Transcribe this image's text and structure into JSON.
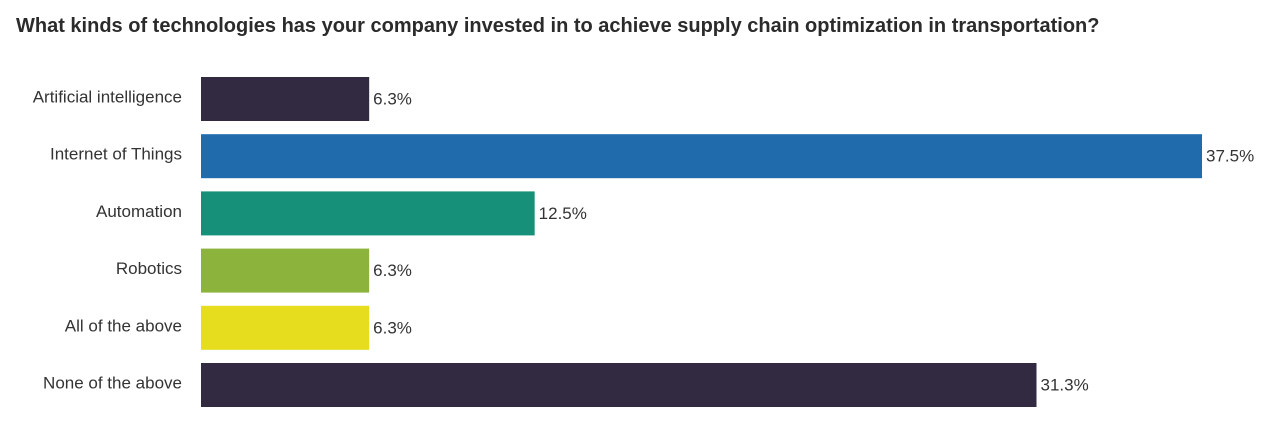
{
  "chart_data": {
    "type": "bar",
    "orientation": "horizontal",
    "title": "What kinds of technologies has your company invested in to achieve supply chain optimization in transportation?",
    "categories": [
      "Artificial intelligence",
      "Internet of Things",
      "Automation",
      "Robotics",
      "All of the above",
      "None of the above"
    ],
    "values": [
      6.3,
      37.5,
      12.5,
      6.3,
      6.3,
      31.3
    ],
    "value_labels": [
      "6.3%",
      "37.5%",
      "12.5%",
      "6.3%",
      "6.3%",
      "31.3%"
    ],
    "colors": [
      "#322a40",
      "#1f6bac",
      "#169078",
      "#8cb43c",
      "#e5dd1e",
      "#322a40"
    ],
    "xlim": [
      0,
      37.5
    ],
    "grid": false,
    "legend": "none"
  }
}
